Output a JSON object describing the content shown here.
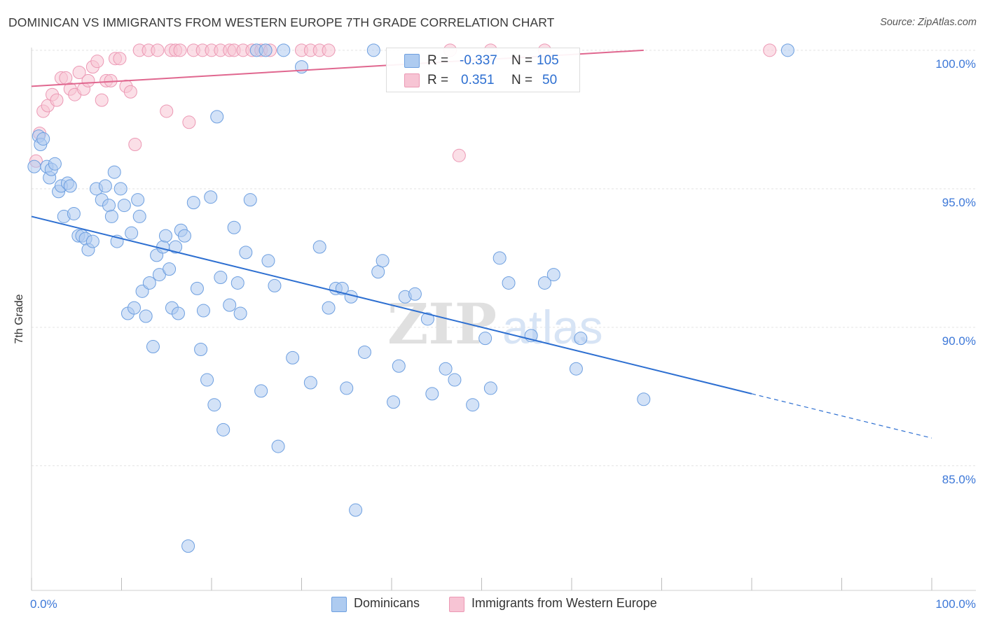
{
  "header": {
    "title": "DOMINICAN VS IMMIGRANTS FROM WESTERN EUROPE 7TH GRADE CORRELATION CHART",
    "source": "Source: ZipAtlas.com"
  },
  "legend": {
    "r_label": "R =",
    "n_label": "N =",
    "series": [
      {
        "name": "Dominicans",
        "r": "-0.337",
        "n": "105"
      },
      {
        "name": "Immigrants from Western Europe",
        "r": "0.351",
        "n": "50"
      }
    ]
  },
  "watermark": {
    "part1": "ZIP",
    "part2": "atlas"
  },
  "colors": {
    "blue_fill": "#aecbf0",
    "blue_stroke": "#6d9fe0",
    "blue_line": "#2d6fd1",
    "pink_fill": "#f7c4d4",
    "pink_stroke": "#ec98b4",
    "pink_line": "#e0678f",
    "axis_label": "#3d78d8",
    "grid": "#e3e3e3"
  },
  "chart_data": {
    "type": "scatter",
    "title": "DOMINICAN VS IMMIGRANTS FROM WESTERN EUROPE 7TH GRADE CORRELATION CHART",
    "xlabel": "",
    "ylabel": "7th Grade",
    "xlim": [
      0,
      100
    ],
    "ylim": [
      80.5,
      100.4
    ],
    "x_tick_labels": [
      "0.0%",
      "100.0%"
    ],
    "y_ticks": [
      85,
      90,
      95,
      100
    ],
    "y_tick_labels": [
      "85.0%",
      "90.0%",
      "95.0%",
      "100.0%"
    ],
    "grid": true,
    "legend_position": "top-center",
    "series": [
      {
        "name": "Dominicans",
        "color": "#aecbf0",
        "trend": {
          "x": [
            0,
            80,
            100
          ],
          "y": [
            94.0,
            87.6,
            86.0
          ],
          "solid_until": 80
        },
        "points": [
          [
            0.3,
            95.8
          ],
          [
            0.8,
            96.9
          ],
          [
            1.0,
            96.6
          ],
          [
            1.3,
            96.8
          ],
          [
            1.7,
            95.8
          ],
          [
            2.0,
            95.4
          ],
          [
            2.2,
            95.7
          ],
          [
            2.6,
            95.9
          ],
          [
            3.0,
            94.9
          ],
          [
            3.3,
            95.1
          ],
          [
            3.6,
            94.0
          ],
          [
            4.0,
            95.2
          ],
          [
            4.3,
            95.1
          ],
          [
            4.7,
            94.1
          ],
          [
            5.2,
            93.3
          ],
          [
            5.6,
            93.3
          ],
          [
            6.0,
            93.2
          ],
          [
            6.3,
            92.8
          ],
          [
            6.8,
            93.1
          ],
          [
            7.2,
            95.0
          ],
          [
            7.8,
            94.6
          ],
          [
            8.2,
            95.1
          ],
          [
            8.6,
            94.4
          ],
          [
            8.9,
            94.0
          ],
          [
            9.2,
            95.6
          ],
          [
            9.5,
            93.1
          ],
          [
            9.9,
            95.0
          ],
          [
            10.3,
            94.4
          ],
          [
            10.7,
            90.5
          ],
          [
            11.1,
            93.4
          ],
          [
            11.4,
            90.7
          ],
          [
            11.8,
            94.6
          ],
          [
            12.0,
            94.0
          ],
          [
            12.3,
            91.3
          ],
          [
            12.7,
            90.4
          ],
          [
            13.1,
            91.6
          ],
          [
            13.5,
            89.3
          ],
          [
            13.9,
            92.6
          ],
          [
            14.2,
            91.9
          ],
          [
            14.6,
            92.9
          ],
          [
            14.9,
            93.3
          ],
          [
            15.3,
            92.1
          ],
          [
            15.6,
            90.7
          ],
          [
            16.0,
            92.9
          ],
          [
            16.3,
            90.5
          ],
          [
            16.6,
            93.5
          ],
          [
            17.0,
            93.3
          ],
          [
            17.4,
            82.1
          ],
          [
            18.0,
            94.5
          ],
          [
            18.4,
            91.4
          ],
          [
            18.8,
            89.2
          ],
          [
            19.1,
            90.6
          ],
          [
            19.5,
            88.1
          ],
          [
            19.9,
            94.7
          ],
          [
            20.3,
            87.2
          ],
          [
            20.6,
            97.6
          ],
          [
            21.0,
            91.8
          ],
          [
            21.3,
            86.3
          ],
          [
            22.0,
            90.8
          ],
          [
            22.5,
            93.6
          ],
          [
            22.9,
            91.6
          ],
          [
            23.2,
            90.5
          ],
          [
            23.8,
            92.7
          ],
          [
            24.3,
            94.6
          ],
          [
            25.0,
            100.0
          ],
          [
            25.5,
            87.7
          ],
          [
            26.0,
            100.0
          ],
          [
            26.3,
            92.4
          ],
          [
            27.0,
            91.5
          ],
          [
            27.4,
            85.7
          ],
          [
            28.0,
            100.0
          ],
          [
            29.0,
            88.9
          ],
          [
            30.0,
            99.4
          ],
          [
            31.0,
            88.0
          ],
          [
            32.0,
            92.9
          ],
          [
            33.0,
            90.7
          ],
          [
            33.8,
            91.4
          ],
          [
            34.5,
            91.4
          ],
          [
            35.0,
            87.8
          ],
          [
            35.5,
            91.1
          ],
          [
            36.0,
            83.4
          ],
          [
            37.0,
            89.1
          ],
          [
            38.0,
            100.0
          ],
          [
            38.5,
            92.0
          ],
          [
            39.0,
            92.4
          ],
          [
            40.2,
            87.3
          ],
          [
            40.8,
            88.6
          ],
          [
            41.5,
            91.1
          ],
          [
            42.6,
            91.2
          ],
          [
            44.0,
            90.3
          ],
          [
            44.5,
            87.6
          ],
          [
            46.0,
            88.5
          ],
          [
            47.0,
            88.1
          ],
          [
            49.0,
            87.2
          ],
          [
            50.4,
            89.6
          ],
          [
            51.0,
            87.8
          ],
          [
            52.0,
            92.5
          ],
          [
            53.0,
            91.6
          ],
          [
            55.5,
            89.7
          ],
          [
            57.0,
            91.6
          ],
          [
            58.0,
            91.9
          ],
          [
            60.5,
            88.5
          ],
          [
            61.0,
            89.6
          ],
          [
            68.0,
            87.4
          ],
          [
            84.0,
            100.0
          ]
        ]
      },
      {
        "name": "Immigrants from Western Europe",
        "color": "#f7c4d4",
        "trend": {
          "x": [
            0,
            68
          ],
          "y": [
            98.7,
            100.0
          ]
        },
        "points": [
          [
            0.5,
            96.0
          ],
          [
            0.9,
            97.0
          ],
          [
            1.3,
            97.8
          ],
          [
            1.8,
            98.0
          ],
          [
            2.3,
            98.4
          ],
          [
            2.8,
            98.2
          ],
          [
            3.3,
            99.0
          ],
          [
            3.8,
            99.0
          ],
          [
            4.3,
            98.6
          ],
          [
            4.8,
            98.4
          ],
          [
            5.3,
            99.2
          ],
          [
            5.8,
            98.6
          ],
          [
            6.3,
            98.9
          ],
          [
            6.8,
            99.4
          ],
          [
            7.3,
            99.6
          ],
          [
            7.8,
            98.2
          ],
          [
            8.3,
            98.9
          ],
          [
            8.8,
            98.9
          ],
          [
            9.3,
            99.7
          ],
          [
            9.8,
            99.7
          ],
          [
            10.5,
            98.7
          ],
          [
            11.0,
            98.5
          ],
          [
            11.5,
            96.6
          ],
          [
            12.0,
            100.0
          ],
          [
            13.0,
            100.0
          ],
          [
            14.0,
            100.0
          ],
          [
            15.0,
            97.8
          ],
          [
            15.5,
            100.0
          ],
          [
            16.0,
            100.0
          ],
          [
            16.5,
            100.0
          ],
          [
            17.5,
            97.4
          ],
          [
            18.0,
            100.0
          ],
          [
            19.0,
            100.0
          ],
          [
            20.0,
            100.0
          ],
          [
            21.0,
            100.0
          ],
          [
            22.0,
            100.0
          ],
          [
            22.5,
            100.0
          ],
          [
            23.5,
            100.0
          ],
          [
            24.5,
            100.0
          ],
          [
            25.5,
            100.0
          ],
          [
            26.5,
            100.0
          ],
          [
            30.0,
            100.0
          ],
          [
            31.0,
            100.0
          ],
          [
            32.0,
            100.0
          ],
          [
            33.0,
            100.0
          ],
          [
            46.5,
            100.0
          ],
          [
            47.5,
            96.2
          ],
          [
            51.0,
            100.0
          ],
          [
            57.0,
            100.0
          ],
          [
            82.0,
            100.0
          ]
        ]
      }
    ]
  }
}
